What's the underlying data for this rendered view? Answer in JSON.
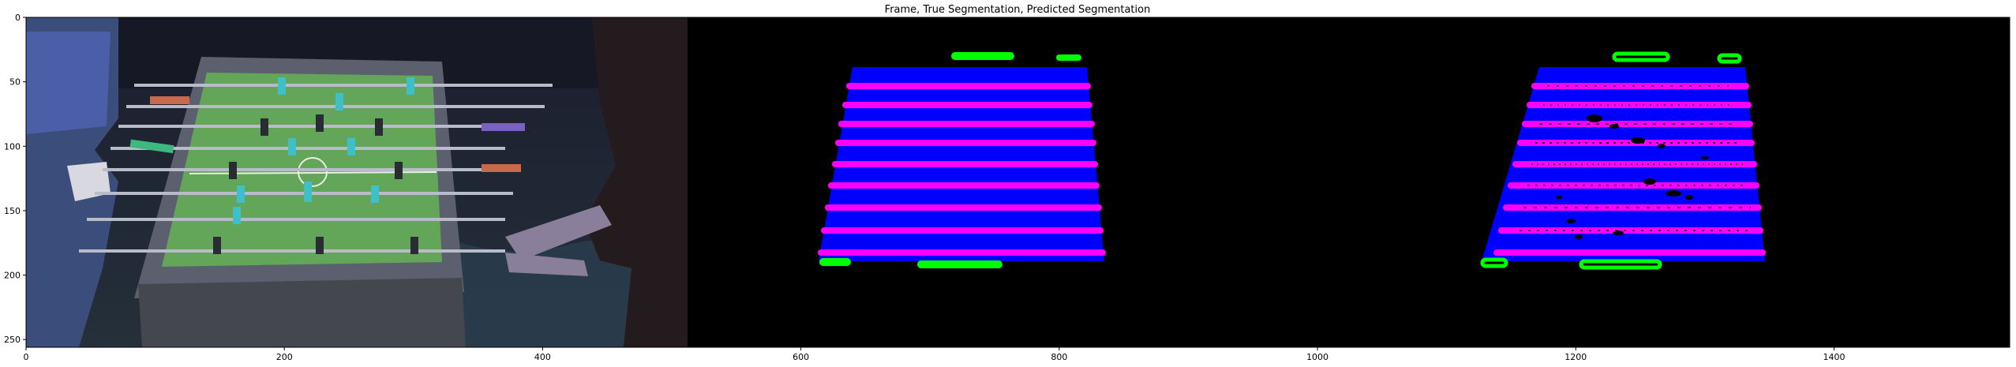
{
  "chart_data": {
    "type": "image",
    "title": "Frame, True Segmentation, Predicted Segmentation",
    "xlabel": "",
    "ylabel": "",
    "xlim": [
      0,
      1536
    ],
    "ylim": [
      256,
      0
    ],
    "x_ticks": [
      0,
      200,
      400,
      600,
      800,
      1000,
      1200,
      1400
    ],
    "y_ticks": [
      0,
      50,
      100,
      150,
      200,
      250
    ],
    "panels": [
      "Frame",
      "True Segmentation",
      "Predicted Segmentation"
    ],
    "panel_x_ranges": [
      [
        0,
        512
      ],
      [
        512,
        1024
      ],
      [
        1024,
        1536
      ]
    ],
    "grid": false
  },
  "colors": {
    "background": "#000000",
    "table_field": "#0000ff",
    "rods": "#ff00ff",
    "goal_markers": "#00ff00",
    "frame_field": "#63a65a"
  }
}
